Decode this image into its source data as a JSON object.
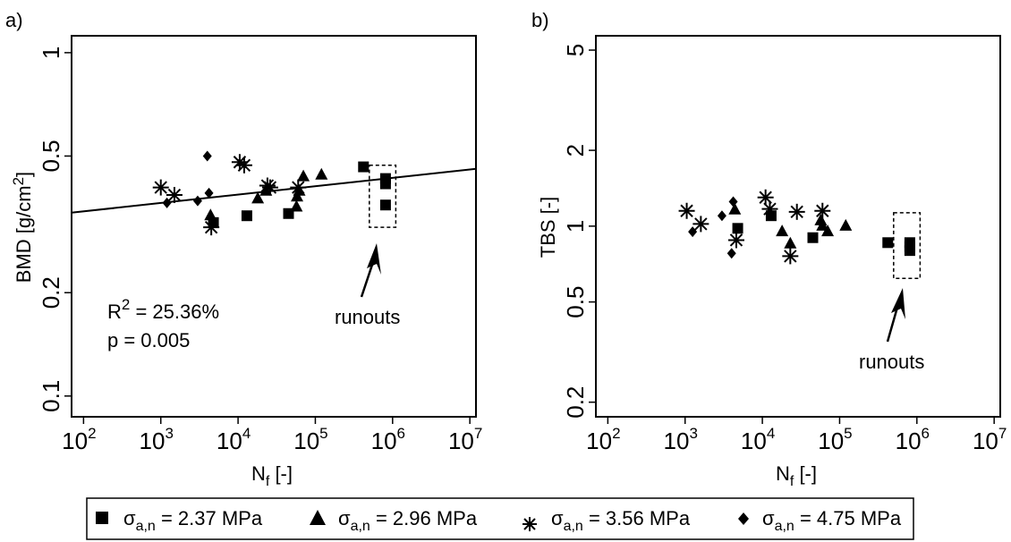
{
  "chart_data": [
    {
      "panel_label": "a)",
      "type": "scatter",
      "xscale": "log",
      "yscale": "log",
      "xlabel": {
        "main": "N",
        "sub": "f",
        "unit": " [-]"
      },
      "ylabel": {
        "main": "BMD [g/cm",
        "sup": "2",
        "end": "]"
      },
      "xlim": [
        70,
        12000000
      ],
      "ylim": [
        0.087,
        1.12
      ],
      "xticks": [
        {
          "value": 100,
          "base": "10",
          "exp": "2"
        },
        {
          "value": 1000,
          "base": "10",
          "exp": "3"
        },
        {
          "value": 10000,
          "base": "10",
          "exp": "4"
        },
        {
          "value": 100000,
          "base": "10",
          "exp": "5"
        },
        {
          "value": 1000000,
          "base": "10",
          "exp": "6"
        },
        {
          "value": 10000000,
          "base": "10",
          "exp": "7"
        }
      ],
      "yticks": [
        {
          "value": 0.1,
          "label": "0.1"
        },
        {
          "value": 0.2,
          "label": "0.2"
        },
        {
          "value": 0.5,
          "label": "0.5"
        },
        {
          "value": 1,
          "label": "1"
        }
      ],
      "grid": false,
      "series": [
        {
          "marker": "square",
          "points": [
            [
              4800,
              0.32
            ],
            [
              13000,
              0.335
            ],
            [
              45000,
              0.34
            ],
            [
              420000,
              0.465
            ],
            [
              810000,
              0.43
            ],
            [
              810000,
              0.415
            ],
            [
              810000,
              0.36
            ]
          ]
        },
        {
          "marker": "triangle",
          "points": [
            [
              4400,
              0.335
            ],
            [
              18000,
              0.375
            ],
            [
              23000,
              0.395
            ],
            [
              57000,
              0.355
            ],
            [
              58000,
              0.38
            ],
            [
              62000,
              0.395
            ],
            [
              70000,
              0.435
            ],
            [
              120000,
              0.44
            ]
          ]
        },
        {
          "marker": "star",
          "points": [
            [
              1000,
              0.405
            ],
            [
              1500,
              0.385
            ],
            [
              4500,
              0.31
            ],
            [
              10500,
              0.48
            ],
            [
              12000,
              0.47
            ],
            [
              24000,
              0.41
            ],
            [
              26000,
              0.405
            ],
            [
              60000,
              0.405
            ]
          ]
        },
        {
          "marker": "diamond",
          "points": [
            [
              1200,
              0.365
            ],
            [
              3000,
              0.37
            ],
            [
              4000,
              0.5
            ],
            [
              4200,
              0.39
            ]
          ]
        }
      ],
      "fit_line": {
        "x": [
          70,
          12000000
        ],
        "y": [
          0.342,
          0.459
        ]
      },
      "annotations": {
        "r2_main": "R",
        "r2_sup": "2",
        "r2_value": " = 25.36%",
        "p": "p = 0.005",
        "runouts": "runouts"
      },
      "runout_box": {
        "x": [
          500000,
          1100000
        ],
        "y": [
          0.31,
          0.47
        ]
      }
    },
    {
      "panel_label": "b)",
      "type": "scatter",
      "xscale": "log",
      "yscale": "log",
      "xlabel": {
        "main": "N",
        "sub": "f",
        "unit": " [-]"
      },
      "ylabel": {
        "main": "TBS [-]"
      },
      "xlim": [
        70,
        12000000
      ],
      "ylim": [
        0.175,
        5.7
      ],
      "xticks": [
        {
          "value": 100,
          "base": "10",
          "exp": "2"
        },
        {
          "value": 1000,
          "base": "10",
          "exp": "3"
        },
        {
          "value": 10000,
          "base": "10",
          "exp": "4"
        },
        {
          "value": 100000,
          "base": "10",
          "exp": "5"
        },
        {
          "value": 1000000,
          "base": "10",
          "exp": "6"
        },
        {
          "value": 10000000,
          "base": "10",
          "exp": "7"
        }
      ],
      "yticks": [
        {
          "value": 0.2,
          "label": "0.2"
        },
        {
          "value": 0.5,
          "label": "0.5"
        },
        {
          "value": 1,
          "label": "1"
        },
        {
          "value": 2,
          "label": "2"
        },
        {
          "value": 5,
          "label": "5"
        }
      ],
      "grid": false,
      "series": [
        {
          "marker": "square",
          "points": [
            [
              4800,
              0.98
            ],
            [
              13000,
              1.1
            ],
            [
              45000,
              0.9
            ],
            [
              420000,
              0.86
            ],
            [
              810000,
              0.86
            ],
            [
              810000,
              0.83
            ],
            [
              810000,
              0.8
            ]
          ]
        },
        {
          "marker": "triangle",
          "points": [
            [
              4400,
              1.16
            ],
            [
              18000,
              0.95
            ],
            [
              23000,
              0.85
            ],
            [
              57000,
              1.05
            ],
            [
              60000,
              1.0
            ],
            [
              70000,
              0.95
            ],
            [
              120000,
              1.0
            ]
          ]
        },
        {
          "marker": "star",
          "points": [
            [
              1050,
              1.15
            ],
            [
              1600,
              1.02
            ],
            [
              4600,
              0.88
            ],
            [
              11000,
              1.3
            ],
            [
              12500,
              1.17
            ],
            [
              23000,
              0.76
            ],
            [
              28000,
              1.14
            ],
            [
              60000,
              1.15
            ]
          ]
        },
        {
          "marker": "diamond",
          "points": [
            [
              1250,
              0.95
            ],
            [
              3000,
              1.1
            ],
            [
              4000,
              0.78
            ],
            [
              4200,
              1.25
            ]
          ]
        }
      ],
      "annotations": {
        "runouts": "runouts"
      },
      "runout_box": {
        "x": [
          500000,
          1100000
        ],
        "y": [
          0.62,
          1.13
        ]
      }
    }
  ],
  "legend": {
    "placement": "bottom-center",
    "items": [
      {
        "marker": "square",
        "symbol": "σ",
        "sub": "a,n",
        "text": " = 2.37 MPa"
      },
      {
        "marker": "triangle",
        "symbol": "σ",
        "sub": "a,n",
        "text": " = 2.96 MPa"
      },
      {
        "marker": "star",
        "symbol": "σ",
        "sub": "a,n",
        "text": " = 3.56 MPa"
      },
      {
        "marker": "diamond",
        "symbol": "σ",
        "sub": "a,n",
        "text": " = 4.75 MPa"
      }
    ]
  }
}
